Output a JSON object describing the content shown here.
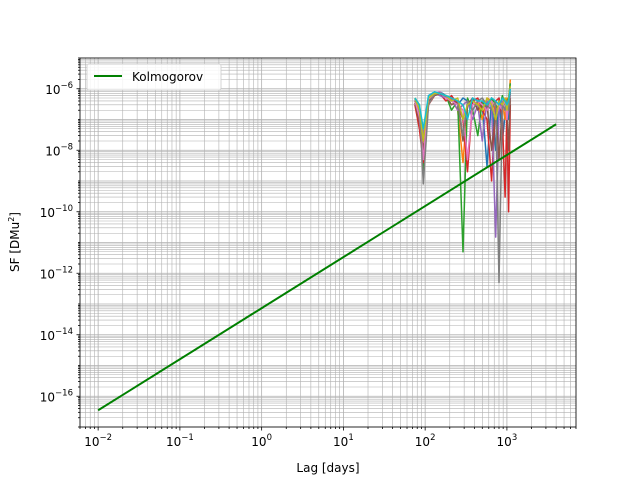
{
  "chart_data": {
    "type": "line",
    "title": "",
    "xlabel": "Lag [days]",
    "ylabel": "SF [DMu",
    "ylabel_sup": "2",
    "ylabel_end": "]",
    "xscale": "log",
    "yscale": "log",
    "xlim": [
      0.006,
      7000
    ],
    "ylim": [
      1e-17,
      1e-05
    ],
    "grid": "major and minor, both axes",
    "legend_placement": "upper-left",
    "x_ticks": [
      {
        "value": 0.01,
        "base": "10",
        "exp": "−2"
      },
      {
        "value": 0.1,
        "base": "10",
        "exp": "−1"
      },
      {
        "value": 1,
        "base": "10",
        "exp": "0"
      },
      {
        "value": 10,
        "base": "10",
        "exp": "1"
      },
      {
        "value": 100,
        "base": "10",
        "exp": "2"
      },
      {
        "value": 1000,
        "base": "10",
        "exp": "3"
      }
    ],
    "y_ticks": [
      {
        "value": 1e-16,
        "base": "10",
        "exp": "−16"
      },
      {
        "value": 1e-14,
        "base": "10",
        "exp": "−14"
      },
      {
        "value": 1e-12,
        "base": "10",
        "exp": "−12"
      },
      {
        "value": 1e-10,
        "base": "10",
        "exp": "−10"
      },
      {
        "value": 1e-08,
        "base": "10",
        "exp": "−8"
      },
      {
        "value": 1e-06,
        "base": "10",
        "exp": "−6"
      }
    ],
    "model_line": {
      "name": "Kolmogorov",
      "color": "#008000",
      "x": [
        0.01,
        4000
      ],
      "y": [
        3.5e-17,
        7e-08
      ]
    },
    "lag_x": [
      75,
      85,
      95,
      110,
      130,
      150,
      180,
      210,
      250,
      290,
      330,
      380,
      440,
      500,
      570,
      650,
      730,
      800,
      880,
      950,
      1000,
      1050,
      1100
    ],
    "series": [
      {
        "color": "#1f77b4",
        "values": [
          4.5e-07,
          1.5e-07,
          2e-08,
          4e-07,
          7e-07,
          8e-07,
          6e-07,
          5e-07,
          3e-07,
          5e-07,
          4e-07,
          2e-07,
          4e-07,
          3e-07,
          3e-09,
          5e-07,
          1e-08,
          5e-07,
          2e-08,
          1.5e-07,
          3e-07,
          1e-07,
          8e-07
        ]
      },
      {
        "color": "#ff7f0e",
        "values": [
          4e-07,
          1e-07,
          1e-08,
          3.5e-07,
          6.5e-07,
          7.5e-07,
          5.5e-07,
          4.5e-07,
          2e-07,
          4e-09,
          3e-07,
          3e-07,
          3.5e-07,
          1e-07,
          5e-07,
          4e-07,
          2e-07,
          3e-07,
          4e-07,
          1e-07,
          5e-07,
          3e-07,
          2e-06
        ]
      },
      {
        "color": "#2ca02c",
        "values": [
          5e-07,
          3e-07,
          2e-09,
          5e-07,
          7e-07,
          7e-07,
          6e-07,
          2e-07,
          4e-07,
          5e-12,
          5e-07,
          2e-07,
          3e-08,
          4e-07,
          2e-07,
          5e-07,
          3e-07,
          2e-07,
          6e-07,
          3e-07,
          4e-07,
          5e-07,
          1.5e-06
        ]
      },
      {
        "color": "#d62728",
        "values": [
          3e-07,
          5e-08,
          4e-09,
          3e-07,
          6e-07,
          7e-07,
          4e-07,
          6e-07,
          3e-07,
          1e-07,
          2e-09,
          4e-07,
          5e-07,
          2e-07,
          1e-07,
          1e-09,
          4e-07,
          5e-07,
          1e-07,
          3e-10,
          2e-07,
          1e-10,
          3e-07
        ]
      },
      {
        "color": "#9467bd",
        "values": [
          4e-07,
          2e-07,
          3e-08,
          6e-07,
          7.5e-07,
          6e-07,
          5e-07,
          5e-07,
          2e-07,
          3e-07,
          4e-07,
          1e-07,
          3e-07,
          2e-08,
          4e-07,
          3e-07,
          1.5e-11,
          2e-07,
          4e-07,
          2e-07,
          3e-07,
          4e-07,
          1e-06
        ]
      },
      {
        "color": "#8c564b",
        "values": [
          3.5e-07,
          8e-08,
          1e-08,
          4e-07,
          6e-07,
          7e-07,
          6e-07,
          3e-07,
          4e-07,
          2e-08,
          3e-07,
          5e-07,
          2e-07,
          4e-07,
          3e-07,
          1e-08,
          2e-07,
          5e-09,
          3e-07,
          4e-07,
          2e-07,
          1e-08,
          5e-07
        ]
      },
      {
        "color": "#e377c2",
        "values": [
          4.2e-07,
          1.2e-07,
          5e-09,
          4.5e-07,
          7e-07,
          8e-07,
          5e-07,
          4e-07,
          3e-07,
          2e-07,
          5e-09,
          3e-07,
          4e-07,
          3e-07,
          2e-07,
          4e-07,
          1e-07,
          3e-07,
          2e-07,
          5e-07,
          1e-07,
          3e-07,
          6e-07
        ]
      },
      {
        "color": "#7f7f7f",
        "values": [
          4e-07,
          3e-07,
          8e-10,
          3e-07,
          6.5e-07,
          7.5e-07,
          5.5e-07,
          5e-07,
          4e-07,
          3e-08,
          4e-07,
          2e-07,
          4e-07,
          5e-07,
          3e-07,
          2e-07,
          4e-07,
          5e-13,
          3e-07,
          2e-07,
          4e-07,
          2e-07,
          8e-07
        ]
      },
      {
        "color": "#bcbd22",
        "values": [
          5e-07,
          2e-07,
          2e-08,
          5e-07,
          7e-07,
          7e-07,
          6e-07,
          4e-07,
          5e-07,
          1e-07,
          3e-07,
          4e-07,
          3e-07,
          2e-07,
          5e-07,
          3e-07,
          1e-07,
          4e-07,
          3e-07,
          5e-07,
          2e-07,
          5e-07,
          1.2e-06
        ]
      },
      {
        "color": "#17becf",
        "values": [
          5e-07,
          3e-07,
          5e-08,
          6e-07,
          8e-07,
          7e-07,
          6e-07,
          5e-07,
          4e-07,
          3e-07,
          1e-07,
          5e-07,
          4e-07,
          4e-07,
          3e-07,
          5e-07,
          4e-07,
          3e-07,
          5e-07,
          4e-07,
          3e-07,
          4e-07,
          1e-06
        ]
      }
    ]
  }
}
